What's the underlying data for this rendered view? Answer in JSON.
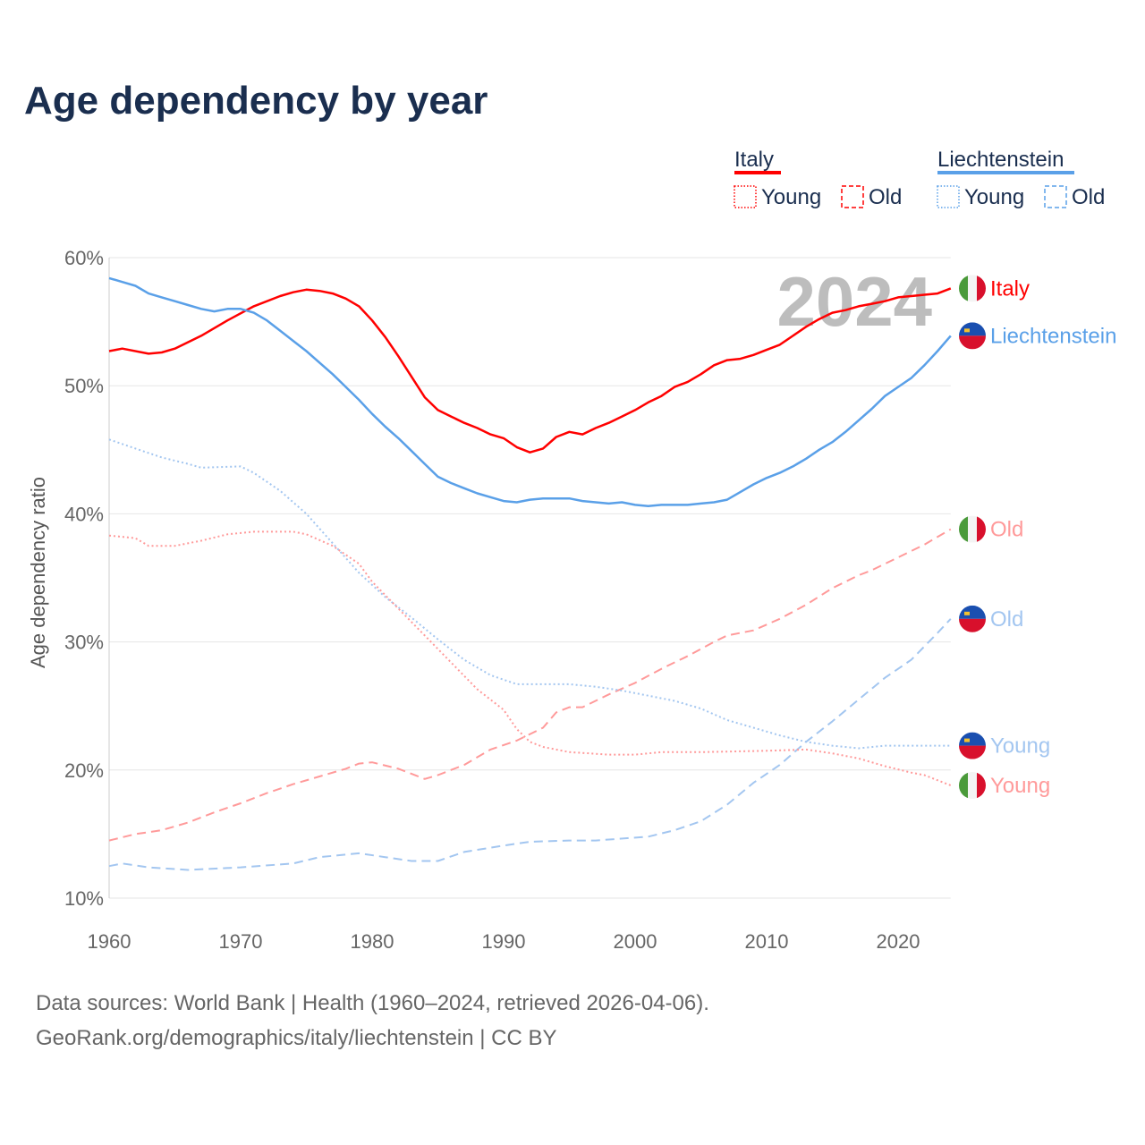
{
  "title": "Age dependency by year",
  "footer": {
    "line1": "Data sources: World Bank | Health (1960–2024, retrieved 2026-04-06).",
    "line2": "GeoRank.org/demographics/italy/liechtenstein | CC BY"
  },
  "legend": {
    "groups": [
      {
        "country": "Italy",
        "color": "#ff0000",
        "items": [
          "Young",
          "Old"
        ]
      },
      {
        "country": "Liechtenstein",
        "color": "#5aa0e8",
        "items": [
          "Young",
          "Old"
        ]
      }
    ]
  },
  "chart_data": {
    "type": "line",
    "title": "Age dependency by year",
    "xlabel": "",
    "ylabel": "Age dependency ratio",
    "xlim": [
      1960,
      2024
    ],
    "ylim": [
      10,
      60
    ],
    "xticks": [
      "1960",
      "1970",
      "1980",
      "1990",
      "2000",
      "2010",
      "2020"
    ],
    "yticks": [
      "10%",
      "20%",
      "30%",
      "40%",
      "50%",
      "60%"
    ],
    "year_watermark": "2024",
    "series": [
      {
        "name": "Italy",
        "label": "Italy",
        "flag": "italy",
        "style": "solid",
        "color": "#ff0000",
        "x": [
          1960,
          1961,
          1963,
          1964,
          1965,
          1967,
          1969,
          1971,
          1973,
          1974,
          1975,
          1976,
          1977,
          1978,
          1979,
          1980,
          1981,
          1982,
          1983,
          1984,
          1985,
          1986,
          1987,
          1988,
          1989,
          1990,
          1991,
          1992,
          1993,
          1994,
          1995,
          1996,
          1997,
          1998,
          1999,
          2000,
          2001,
          2002,
          2003,
          2004,
          2005,
          2006,
          2007,
          2008,
          2009,
          2010,
          2011,
          2012,
          2013,
          2014,
          2015,
          2016,
          2017,
          2018,
          2019,
          2020,
          2021,
          2022,
          2023,
          2024
        ],
        "y": [
          52.7,
          52.9,
          52.5,
          52.6,
          52.9,
          53.9,
          55.1,
          56.2,
          57.0,
          57.3,
          57.5,
          57.4,
          57.2,
          56.8,
          56.2,
          55.1,
          53.8,
          52.3,
          50.7,
          49.1,
          48.1,
          47.6,
          47.1,
          46.7,
          46.2,
          45.9,
          45.2,
          44.8,
          45.1,
          46.0,
          46.4,
          46.2,
          46.7,
          47.1,
          47.6,
          48.1,
          48.7,
          49.2,
          49.9,
          50.3,
          50.9,
          51.6,
          52.0,
          52.1,
          52.4,
          52.8,
          53.2,
          53.9,
          54.6,
          55.2,
          55.7,
          55.9,
          56.2,
          56.4,
          56.6,
          56.9,
          57.0,
          57.1,
          57.2,
          57.6
        ]
      },
      {
        "name": "Liechtenstein",
        "label": "Liechtenstein",
        "flag": "liechtenstein",
        "style": "solid",
        "color": "#5aa0e8",
        "x": [
          1960,
          1961,
          1962,
          1963,
          1964,
          1965,
          1966,
          1967,
          1968,
          1969,
          1970,
          1971,
          1972,
          1973,
          1974,
          1975,
          1976,
          1977,
          1978,
          1979,
          1980,
          1981,
          1982,
          1983,
          1984,
          1985,
          1986,
          1987,
          1988,
          1989,
          1990,
          1991,
          1992,
          1993,
          1994,
          1995,
          1996,
          1997,
          1998,
          1999,
          2000,
          2001,
          2002,
          2003,
          2004,
          2005,
          2006,
          2007,
          2008,
          2009,
          2010,
          2011,
          2012,
          2013,
          2014,
          2015,
          2016,
          2017,
          2018,
          2019,
          2020,
          2021,
          2022,
          2023,
          2024
        ],
        "y": [
          58.4,
          58.1,
          57.8,
          57.2,
          56.9,
          56.6,
          56.3,
          56.0,
          55.8,
          56.0,
          56.0,
          55.7,
          55.1,
          54.3,
          53.5,
          52.7,
          51.8,
          50.9,
          49.9,
          48.9,
          47.8,
          46.8,
          45.9,
          44.9,
          43.9,
          42.9,
          42.4,
          42.0,
          41.6,
          41.3,
          41.0,
          40.9,
          41.1,
          41.2,
          41.2,
          41.2,
          41.0,
          40.9,
          40.8,
          40.9,
          40.7,
          40.6,
          40.7,
          40.7,
          40.7,
          40.8,
          40.9,
          41.1,
          41.7,
          42.3,
          42.8,
          43.2,
          43.7,
          44.3,
          45.0,
          45.6,
          46.4,
          47.3,
          48.2,
          49.2,
          49.9,
          50.6,
          51.6,
          52.7,
          53.9
        ]
      },
      {
        "name": "Italy Old",
        "label": "Old",
        "flag": "italy",
        "style": "dashed",
        "color": "#ff9a9a",
        "x": [
          1960,
          1962,
          1964,
          1966,
          1968,
          1970,
          1972,
          1974,
          1976,
          1978,
          1979,
          1980,
          1982,
          1984,
          1985,
          1987,
          1989,
          1991,
          1993,
          1994,
          1995,
          1996,
          1998,
          2000,
          2002,
          2004,
          2006,
          2007,
          2009,
          2011,
          2013,
          2015,
          2017,
          2018,
          2020,
          2022,
          2024
        ],
        "y": [
          14.5,
          15.0,
          15.3,
          15.9,
          16.7,
          17.4,
          18.2,
          18.9,
          19.5,
          20.1,
          20.5,
          20.6,
          20.1,
          19.3,
          19.6,
          20.4,
          21.6,
          22.3,
          23.3,
          24.5,
          24.9,
          24.9,
          25.9,
          26.8,
          27.9,
          28.9,
          30.0,
          30.5,
          30.9,
          31.8,
          32.9,
          34.2,
          35.2,
          35.6,
          36.6,
          37.6,
          38.8
        ]
      },
      {
        "name": "Liechtenstein Old",
        "label": "Old",
        "flag": "liechtenstein",
        "style": "dashed",
        "color": "#a3c6f0",
        "x": [
          1960,
          1961,
          1963,
          1966,
          1970,
          1974,
          1976,
          1979,
          1981,
          1983,
          1985,
          1987,
          1990,
          1992,
          1995,
          1997,
          2001,
          2003,
          2005,
          2007,
          2009,
          2011,
          2013,
          2015,
          2017,
          2019,
          2021,
          2023,
          2024
        ],
        "y": [
          12.5,
          12.7,
          12.4,
          12.2,
          12.4,
          12.7,
          13.2,
          13.5,
          13.2,
          12.9,
          12.9,
          13.6,
          14.1,
          14.4,
          14.5,
          14.5,
          14.8,
          15.3,
          16.0,
          17.3,
          19.0,
          20.4,
          22.2,
          23.8,
          25.5,
          27.2,
          28.6,
          30.7,
          31.8
        ]
      },
      {
        "name": "Liechtenstein Young",
        "label": "Young",
        "flag": "liechtenstein",
        "style": "dotted",
        "color": "#a3c6f0",
        "x": [
          1960,
          1962,
          1964,
          1966,
          1967,
          1970,
          1971,
          1973,
          1975,
          1977,
          1979,
          1981,
          1983,
          1985,
          1987,
          1989,
          1991,
          1993,
          1995,
          1997,
          1999,
          2001,
          2003,
          2005,
          2007,
          2009,
          2011,
          2013,
          2015,
          2017,
          2019,
          2021,
          2024
        ],
        "y": [
          45.8,
          45.1,
          44.4,
          43.9,
          43.6,
          43.7,
          43.2,
          41.8,
          40.0,
          37.7,
          35.4,
          33.5,
          31.9,
          30.2,
          28.6,
          27.4,
          26.7,
          26.7,
          26.7,
          26.5,
          26.2,
          25.8,
          25.4,
          24.8,
          23.9,
          23.3,
          22.7,
          22.2,
          21.9,
          21.7,
          21.9,
          21.9,
          21.9
        ]
      },
      {
        "name": "Italy Young",
        "label": "Young",
        "flag": "italy",
        "style": "dotted",
        "color": "#ff9a9a",
        "x": [
          1960,
          1962,
          1963,
          1965,
          1967,
          1969,
          1971,
          1974,
          1975,
          1977,
          1979,
          1980,
          1982,
          1984,
          1986,
          1988,
          1990,
          1991,
          1992,
          1993,
          1995,
          1998,
          2000,
          2002,
          2005,
          2010,
          2013,
          2015,
          2017,
          2019,
          2021,
          2022,
          2024
        ],
        "y": [
          38.3,
          38.1,
          37.5,
          37.5,
          37.9,
          38.4,
          38.6,
          38.6,
          38.4,
          37.5,
          36.1,
          34.7,
          32.6,
          30.5,
          28.4,
          26.3,
          24.7,
          23.2,
          22.2,
          21.8,
          21.4,
          21.2,
          21.2,
          21.4,
          21.4,
          21.5,
          21.6,
          21.3,
          20.9,
          20.3,
          19.8,
          19.6,
          18.8
        ]
      }
    ]
  }
}
